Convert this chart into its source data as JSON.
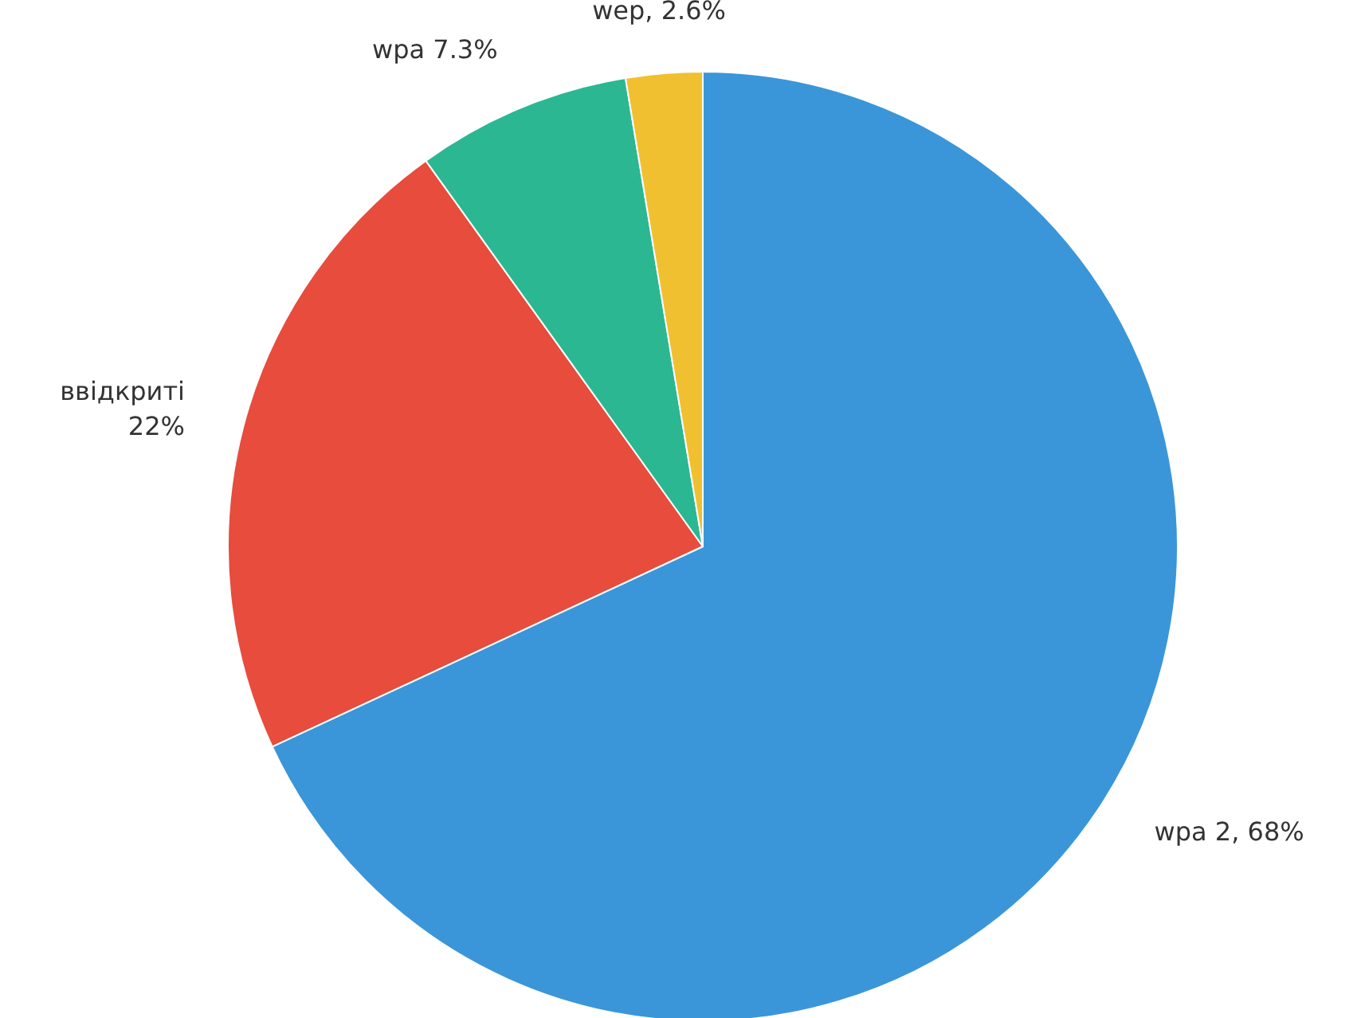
{
  "chart_data": {
    "type": "pie",
    "categories": [
      "wpa 2, 68%",
      "ввідкриті 22%",
      "wpa 7.3%",
      "wep, 2.6%"
    ],
    "values": [
      68,
      22,
      7.3,
      2.6
    ],
    "colors": [
      "#3a96d8",
      "#e74c3c",
      "#2bb792",
      "#f0c030"
    ]
  }
}
